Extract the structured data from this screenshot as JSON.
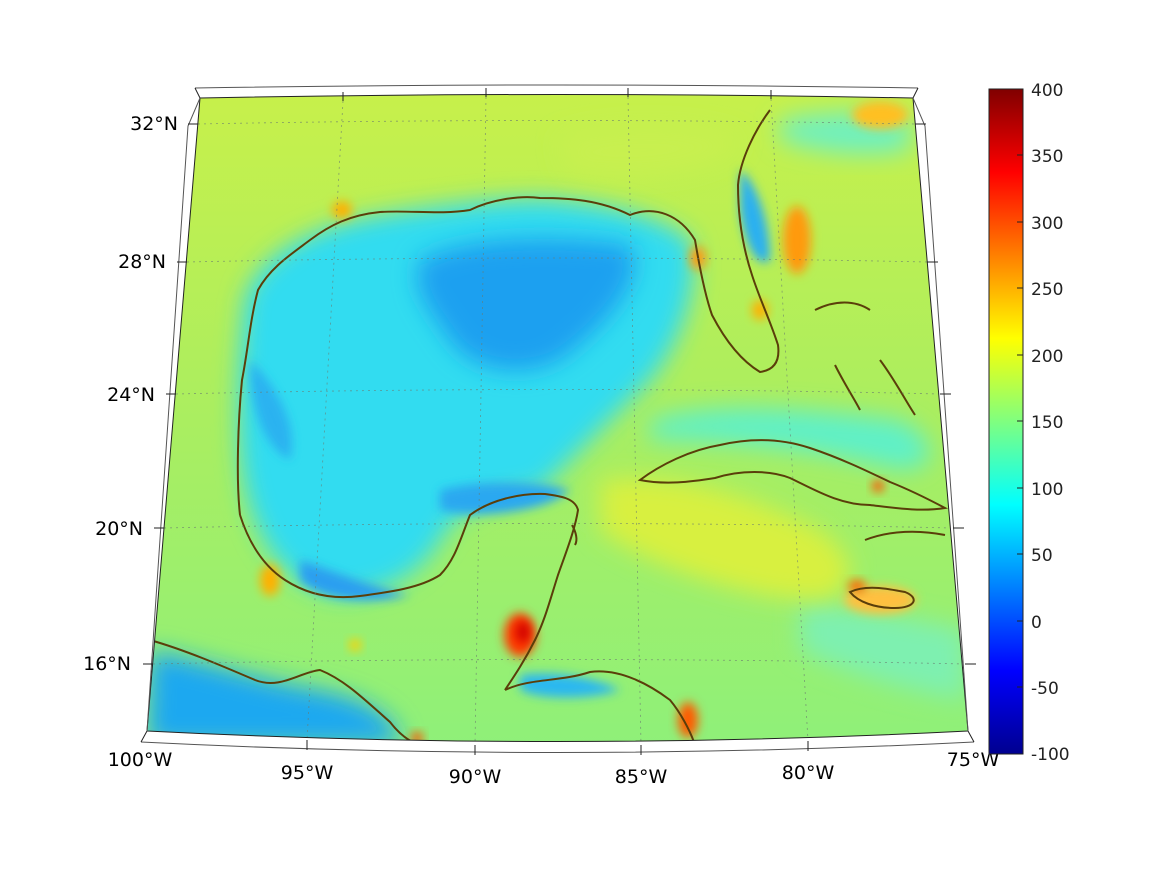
{
  "map": {
    "projection": "conic",
    "lon_range": [
      -100,
      -75
    ],
    "lat_range": [
      14,
      32.8
    ],
    "lon_ticks": [
      {
        "value": -100,
        "label": "100°W"
      },
      {
        "value": -95,
        "label": "95°W"
      },
      {
        "value": -90,
        "label": "90°W"
      },
      {
        "value": -85,
        "label": "85°W"
      },
      {
        "value": -80,
        "label": "80°W"
      },
      {
        "value": -75,
        "label": "75°W"
      }
    ],
    "lat_ticks": [
      {
        "value": 16,
        "label": "16°N"
      },
      {
        "value": 20,
        "label": "20°N"
      },
      {
        "value": 24,
        "label": "24°N"
      },
      {
        "value": 28,
        "label": "28°N"
      },
      {
        "value": 32,
        "label": "32°N"
      }
    ],
    "grid": true,
    "coastline_color": "#5a3e0a"
  },
  "colorbar": {
    "colormap": "jet",
    "min": -100,
    "max": 400,
    "ticks": [
      {
        "value": 400,
        "label": "400"
      },
      {
        "value": 350,
        "label": "350"
      },
      {
        "value": 300,
        "label": "300"
      },
      {
        "value": 250,
        "label": "250"
      },
      {
        "value": 200,
        "label": "200"
      },
      {
        "value": 150,
        "label": "150"
      },
      {
        "value": 100,
        "label": "100"
      },
      {
        "value": 50,
        "label": "50"
      },
      {
        "value": 0,
        "label": "0"
      },
      {
        "value": -50,
        "label": "-50"
      },
      {
        "value": -100,
        "label": "-100"
      }
    ]
  }
}
